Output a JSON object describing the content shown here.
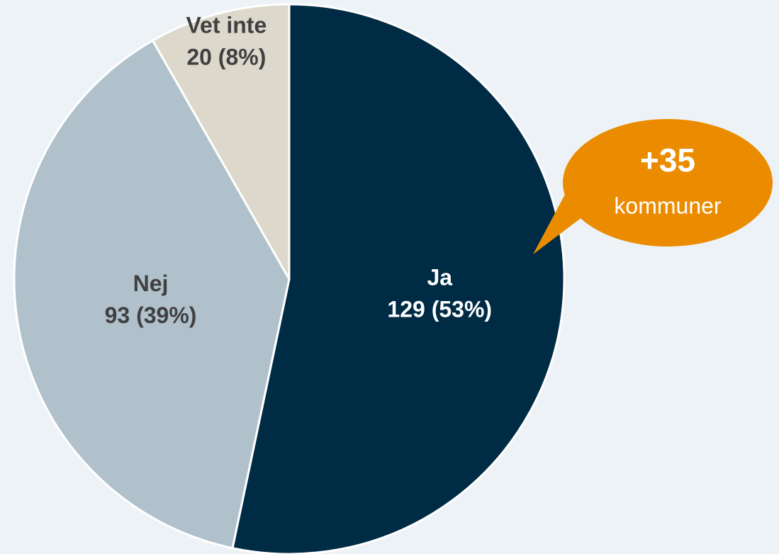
{
  "chart_data": {
    "type": "pie",
    "categories": [
      "Ja",
      "Nej",
      "Vet inte"
    ],
    "values": [
      129,
      93,
      20
    ],
    "value_labels": [
      "129 (53%)",
      "93 (39%)",
      "20 (8%)"
    ],
    "colors": [
      "#002b45",
      "#b0c1cc",
      "#dcd8cc"
    ],
    "label_colors": [
      "#ffffff",
      "#404040",
      "#404040"
    ],
    "annotation": {
      "headline": "+35",
      "text": "kommuner",
      "color": "#eb8c00"
    }
  }
}
